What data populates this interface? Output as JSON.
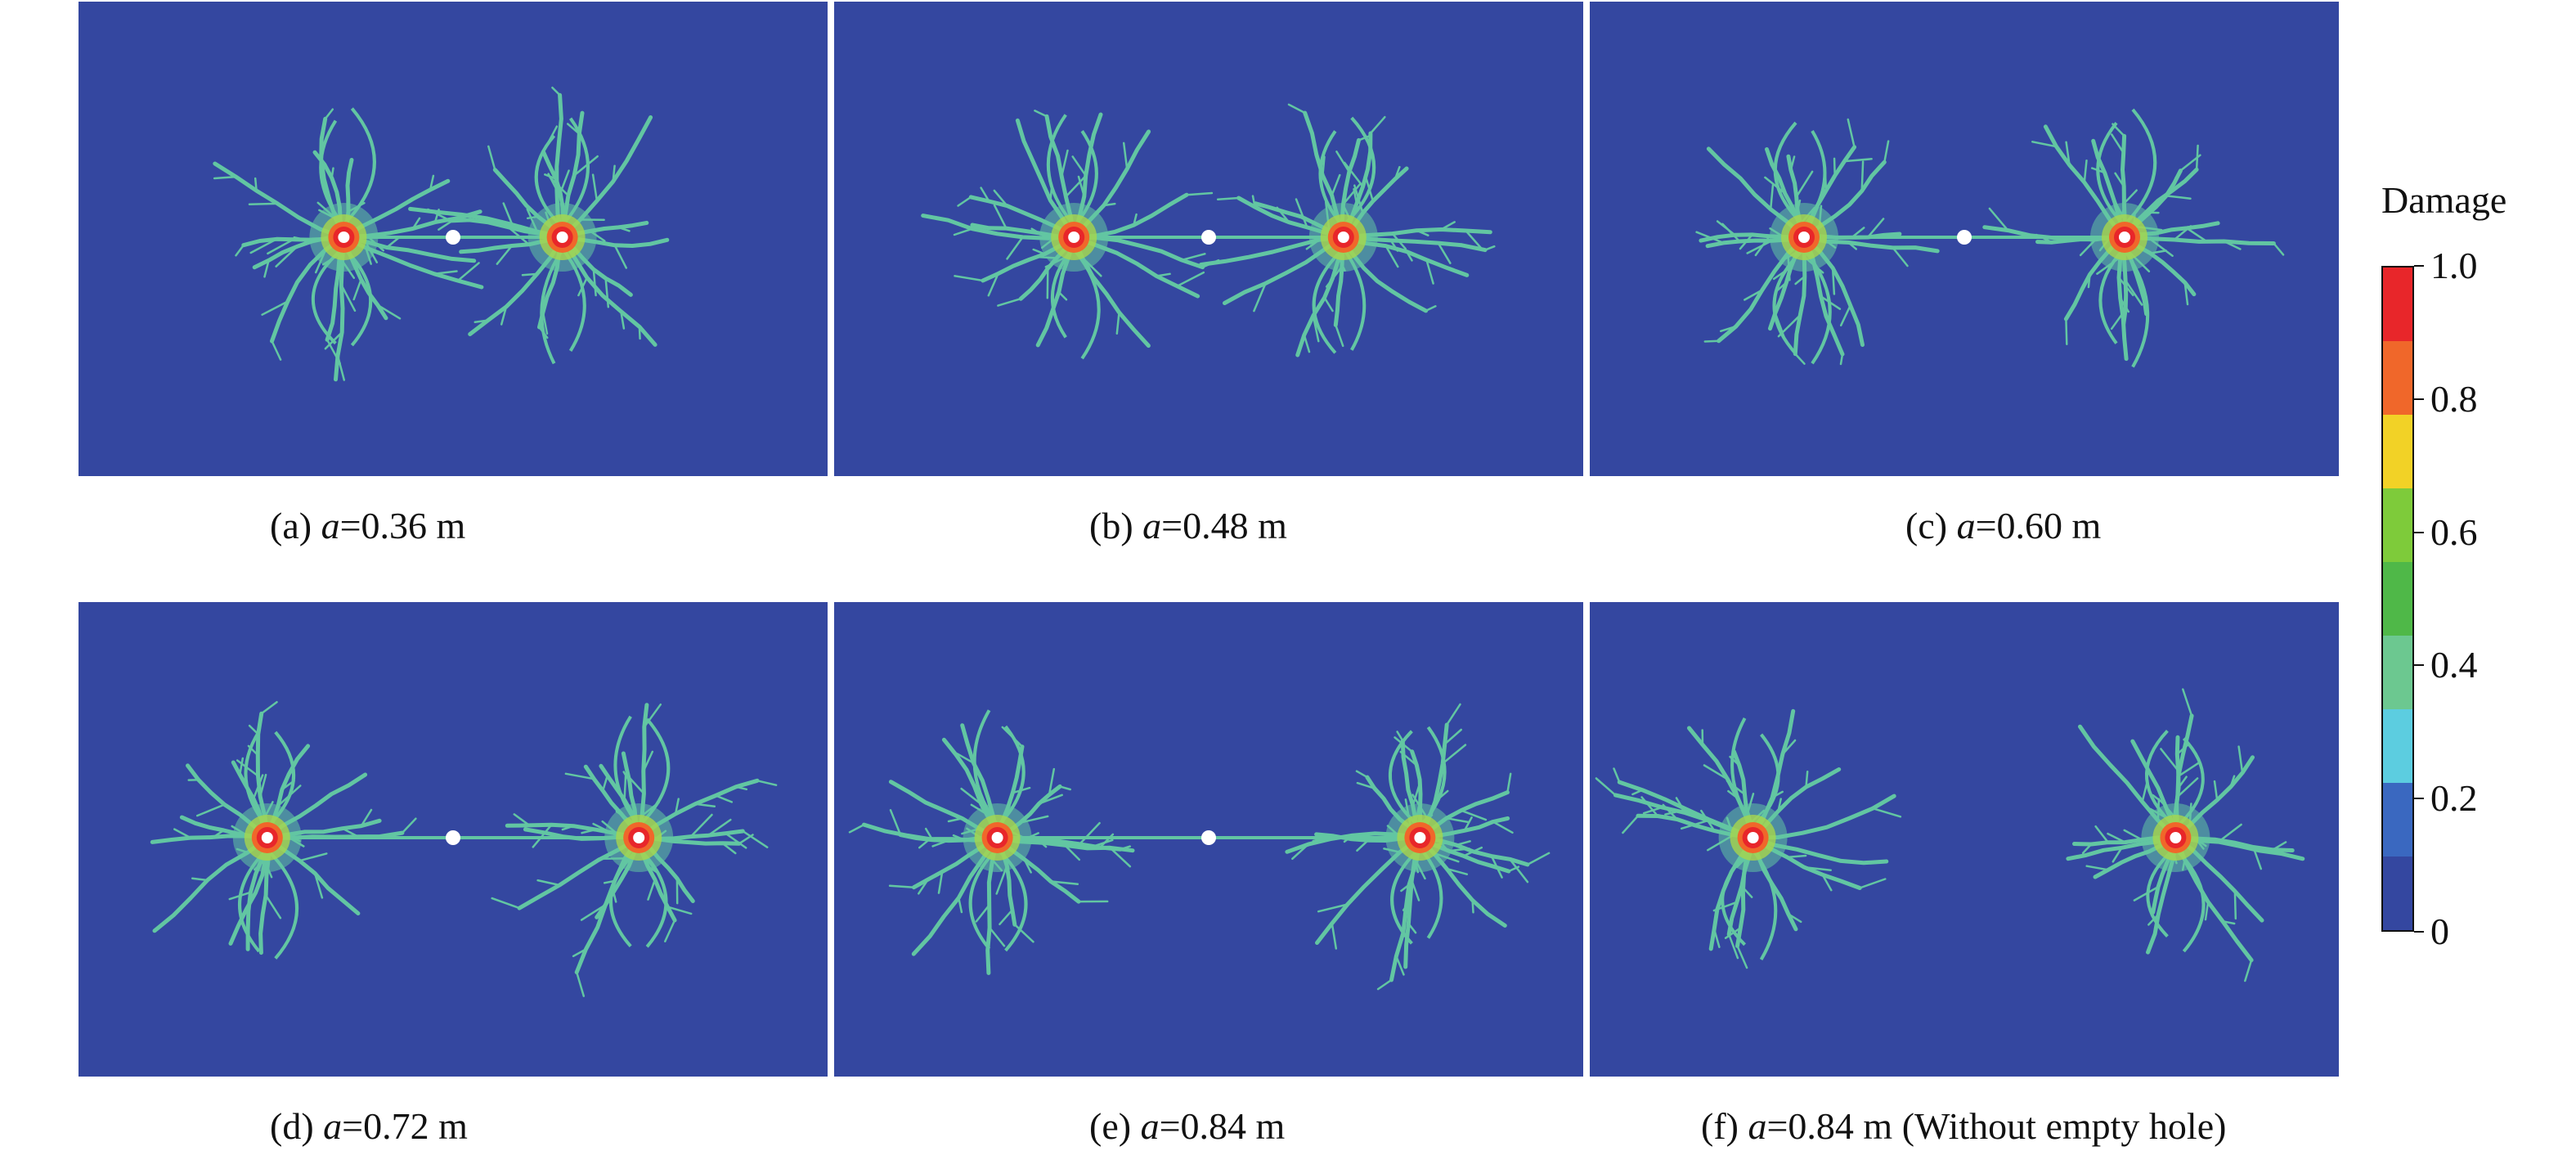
{
  "panels": [
    {
      "id": "a",
      "prefix": "(a) ",
      "var": "a",
      "value": "=0.36 m",
      "suffix": "",
      "spacing": 0.36,
      "empty_hole": true
    },
    {
      "id": "b",
      "prefix": "(b) ",
      "var": "a",
      "value": "=0.48 m",
      "suffix": "",
      "spacing": 0.48,
      "empty_hole": true
    },
    {
      "id": "c",
      "prefix": "(c) ",
      "var": "a",
      "value": "=0.60 m",
      "suffix": "",
      "spacing": 0.6,
      "empty_hole": true
    },
    {
      "id": "d",
      "prefix": "(d) ",
      "var": "a",
      "value": "=0.72 m",
      "suffix": "",
      "spacing": 0.72,
      "empty_hole": true
    },
    {
      "id": "e",
      "prefix": "(e) ",
      "var": "a",
      "value": "=0.84 m",
      "suffix": "",
      "spacing": 0.84,
      "empty_hole": true
    },
    {
      "id": "f",
      "prefix": "(f) ",
      "var": "a",
      "value": "=0.84 m",
      "suffix": " (Without empty hole)",
      "spacing": 0.84,
      "empty_hole": false
    }
  ],
  "legend": {
    "title": "Damage",
    "ticks": [
      "1.0",
      "0.8",
      "0.6",
      "0.4",
      "0.2",
      "0"
    ],
    "colors": [
      "#e8262a",
      "#f0672a",
      "#f2d226",
      "#7ecb3a",
      "#4fb848",
      "#6cc890",
      "#5ccde0",
      "#3a68c0",
      "#3447a0"
    ]
  },
  "colors": {
    "background": "#3447a0",
    "crack": "#62c6a2",
    "crack_mid": "#a8d64c",
    "core_hot": "#e8262a",
    "core_warm": "#f0672a",
    "hole": "#ffffff"
  }
}
